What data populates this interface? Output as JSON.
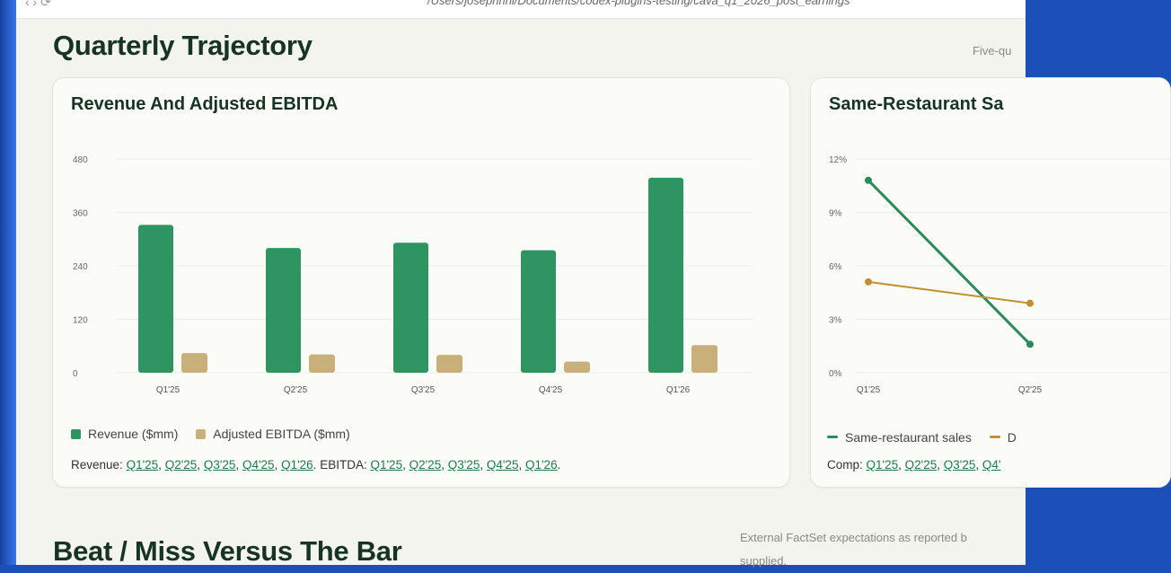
{
  "address_bar": {
    "path": "/Users/josephrini/Documents/codex-plugins-testing/cava_q1_2026_post_earnings"
  },
  "section": {
    "title": "Quarterly Trajectory",
    "note": "Five-qu"
  },
  "revenue_card": {
    "title": "Revenue And Adjusted EBITDA",
    "legend": [
      "Revenue ($mm)",
      "Adjusted EBITDA ($mm)"
    ],
    "sources_label_rev": "Revenue:",
    "sources_label_ebitda": "EBITDA:",
    "source_links": [
      "Q1'25",
      "Q2'25",
      "Q3'25",
      "Q4'25",
      "Q1'26"
    ]
  },
  "comp_card": {
    "title": "Same-Restaurant Sa",
    "legend": [
      "Same-restaurant sales",
      "D"
    ],
    "sources_label": "Comp:",
    "source_links": [
      "Q1'25",
      "Q2'25",
      "Q3'25",
      "Q4'"
    ]
  },
  "next_section": {
    "title": "Beat / Miss Versus The Bar",
    "note_line1": "External FactSet expectations as reported b",
    "note_line2": "supplied."
  },
  "colors": {
    "revenue": "#2e9562",
    "ebitda": "#c9b07a",
    "comp": "#2b8a5c",
    "comp2": "#c29030"
  },
  "chart_data": [
    {
      "type": "bar",
      "title": "Revenue And Adjusted EBITDA",
      "categories": [
        "Q1'25",
        "Q2'25",
        "Q3'25",
        "Q4'25",
        "Q1'26"
      ],
      "series": [
        {
          "name": "Revenue ($mm)",
          "values": [
            332,
            280,
            292,
            275,
            438
          ]
        },
        {
          "name": "Adjusted EBITDA ($mm)",
          "values": [
            44,
            41,
            40,
            25,
            62
          ]
        }
      ],
      "yticks": [
        "0",
        "120",
        "240",
        "360",
        "480"
      ],
      "ylim": [
        0,
        480
      ],
      "grid": true,
      "legend": "bottom-left"
    },
    {
      "type": "line",
      "title": "Same-Restaurant Sa",
      "categories": [
        "Q1'25",
        "Q2'25"
      ],
      "series": [
        {
          "name": "Same-restaurant sales",
          "values": [
            10.8,
            1.6
          ]
        },
        {
          "name": "D",
          "values": [
            5.1,
            3.9
          ]
        }
      ],
      "yticks": [
        "0%",
        "3%",
        "6%",
        "9%",
        "12%"
      ],
      "ylim": [
        0,
        12
      ],
      "grid": true,
      "legend": "bottom-left"
    }
  ]
}
